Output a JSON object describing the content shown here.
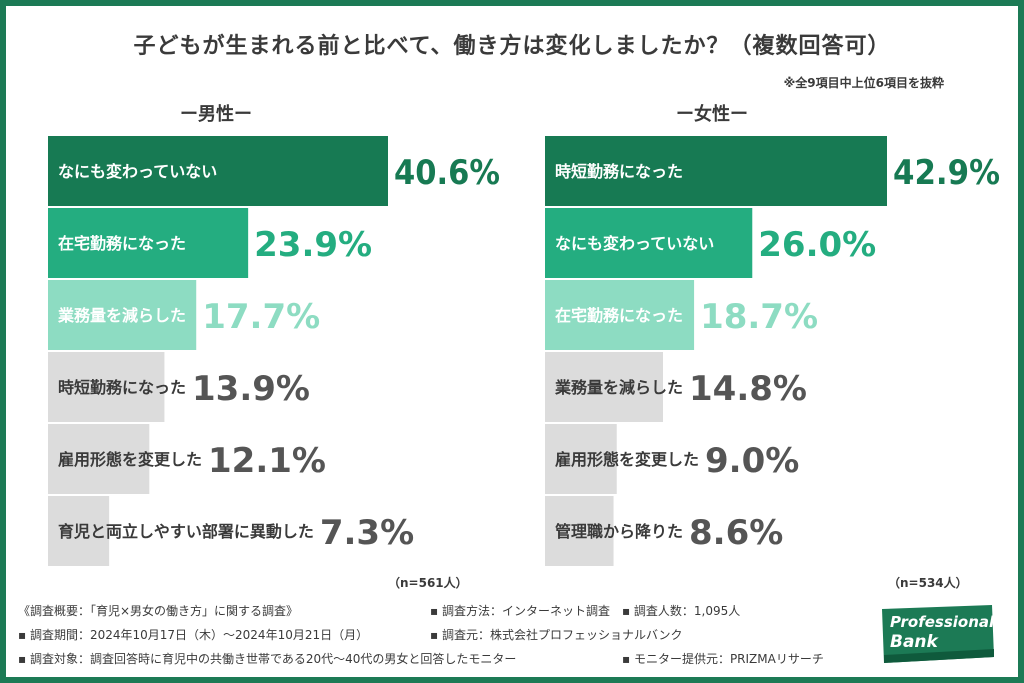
{
  "title": "子どもが生まれる前と比べて、働き方は変化しましたか？（複数回答可）",
  "note": "※全9項目中上位6項目を抜粋",
  "colors": {
    "dark": "#177a53",
    "mid": "#24ad80",
    "light": "#8ddcc2",
    "gray": "#dcdcdc",
    "frame": "#1c7a55",
    "text": "#3a3a3a"
  },
  "chart_data": [
    {
      "type": "bar",
      "orientation": "horizontal",
      "title": "ー男性ー",
      "n_label": "（n=561人）",
      "categories": [
        "なにも変わっていない",
        "在宅勤務になった",
        "業務量を減らした",
        "時短勤務になった",
        "雇用形態を変更した",
        "育児と両立しやすい部署に異動した"
      ],
      "values": [
        40.6,
        23.9,
        17.7,
        13.9,
        12.1,
        7.3
      ],
      "value_labels": [
        "40.6%",
        "23.9%",
        "17.7%",
        "13.9%",
        "12.1%",
        "7.3%"
      ],
      "bar_colors": [
        "#177a53",
        "#24ad80",
        "#8ddcc2",
        "#dcdcdc",
        "#dcdcdc",
        "#dcdcdc"
      ],
      "xlim": [
        0,
        40.6
      ]
    },
    {
      "type": "bar",
      "orientation": "horizontal",
      "title": "ー女性ー",
      "n_label": "（n=534人）",
      "categories": [
        "時短勤務になった",
        "なにも変わっていない",
        "在宅勤務になった",
        "業務量を減らした",
        "雇用形態を変更した",
        "管理職から降りた"
      ],
      "values": [
        42.9,
        26.0,
        18.7,
        14.8,
        9.0,
        8.6
      ],
      "value_labels": [
        "42.9%",
        "26.0%",
        "18.7%",
        "14.8%",
        "9.0%",
        "8.6%"
      ],
      "bar_colors": [
        "#177a53",
        "#24ad80",
        "#8ddcc2",
        "#dcdcdc",
        "#dcdcdc",
        "#dcdcdc"
      ],
      "xlim": [
        0,
        42.9
      ]
    }
  ],
  "footer": {
    "overview": "《調査概要：「育児×男女の働き方」に関する調査》",
    "method": "▪ 調査方法：インターネット調査　▪ 調査人数：1,095人",
    "period": "▪ 調査期間：2024年10月17日（木）〜2024年10月21日（月）",
    "organizer": "▪ 調査元：株式会社プロフェッショナルバンク",
    "target": "▪ 調査対象：調査回答時に育児中の共働き世帯である20代〜40代の男女と回答したモニター",
    "provider": "▪ モニター提供元：PRIZMAリサーチ"
  },
  "logo": {
    "line1": "Professional",
    "line2": "Bank",
    "bg": "#1c7a55"
  }
}
